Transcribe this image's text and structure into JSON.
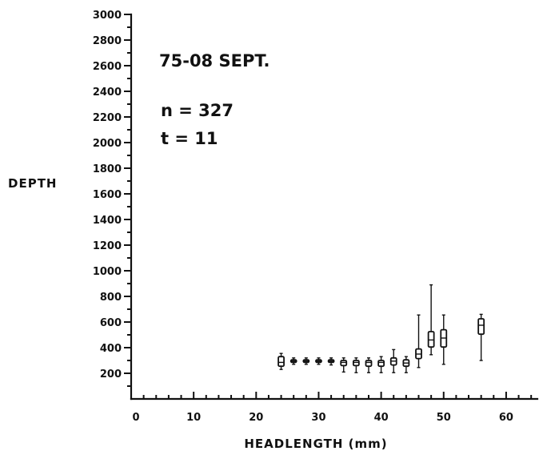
{
  "chart_data": {
    "type": "boxplot",
    "annotations": [
      "75-08 SEPT.",
      "n = 327",
      "t = 11"
    ],
    "xlabel": "HEADLENGTH (mm)",
    "ylabel": "DEPTH",
    "xlim": [
      0,
      65
    ],
    "ylim": [
      0,
      3000
    ],
    "x_ticks": [
      0,
      10,
      20,
      30,
      40,
      50,
      60
    ],
    "x_tick_labels": [
      "0",
      "10",
      "20",
      "30",
      "40",
      "50",
      "60"
    ],
    "x_minor_step": 2,
    "y_ticks": [
      200,
      400,
      600,
      800,
      1000,
      1200,
      1400,
      1600,
      1800,
      2000,
      2200,
      2400,
      2600,
      2800,
      3000
    ],
    "y_tick_labels": [
      "200",
      "400",
      "600",
      "800",
      "1000",
      "1200",
      "1400",
      "1600",
      "1800",
      "2000",
      "2200",
      "2400",
      "2600",
      "2800",
      "3000"
    ],
    "y_minor_step": 100,
    "grid": false,
    "boxes": [
      {
        "x": 24,
        "min": 230,
        "q1": 255,
        "median": 285,
        "q3": 330,
        "max": 355
      },
      {
        "x": 26,
        "min": 270,
        "q1": 285,
        "median": 295,
        "q3": 305,
        "max": 320
      },
      {
        "x": 28,
        "min": 270,
        "q1": 285,
        "median": 295,
        "q3": 305,
        "max": 320
      },
      {
        "x": 30,
        "min": 270,
        "q1": 285,
        "median": 295,
        "q3": 305,
        "max": 320
      },
      {
        "x": 32,
        "min": 265,
        "q1": 285,
        "median": 295,
        "q3": 305,
        "max": 320
      },
      {
        "x": 34,
        "min": 210,
        "q1": 260,
        "median": 285,
        "q3": 300,
        "max": 320
      },
      {
        "x": 36,
        "min": 205,
        "q1": 260,
        "median": 285,
        "q3": 300,
        "max": 320
      },
      {
        "x": 38,
        "min": 205,
        "q1": 255,
        "median": 285,
        "q3": 300,
        "max": 320
      },
      {
        "x": 40,
        "min": 205,
        "q1": 255,
        "median": 285,
        "q3": 300,
        "max": 330
      },
      {
        "x": 42,
        "min": 205,
        "q1": 265,
        "median": 295,
        "q3": 320,
        "max": 385
      },
      {
        "x": 44,
        "min": 205,
        "q1": 255,
        "median": 280,
        "q3": 305,
        "max": 330
      },
      {
        "x": 46,
        "min": 245,
        "q1": 315,
        "median": 350,
        "q3": 390,
        "max": 655
      },
      {
        "x": 48,
        "min": 345,
        "q1": 405,
        "median": 460,
        "q3": 525,
        "max": 890
      },
      {
        "x": 50,
        "min": 270,
        "q1": 405,
        "median": 475,
        "q3": 540,
        "max": 655
      },
      {
        "x": 56,
        "min": 300,
        "q1": 505,
        "median": 575,
        "q3": 625,
        "max": 660
      }
    ]
  }
}
